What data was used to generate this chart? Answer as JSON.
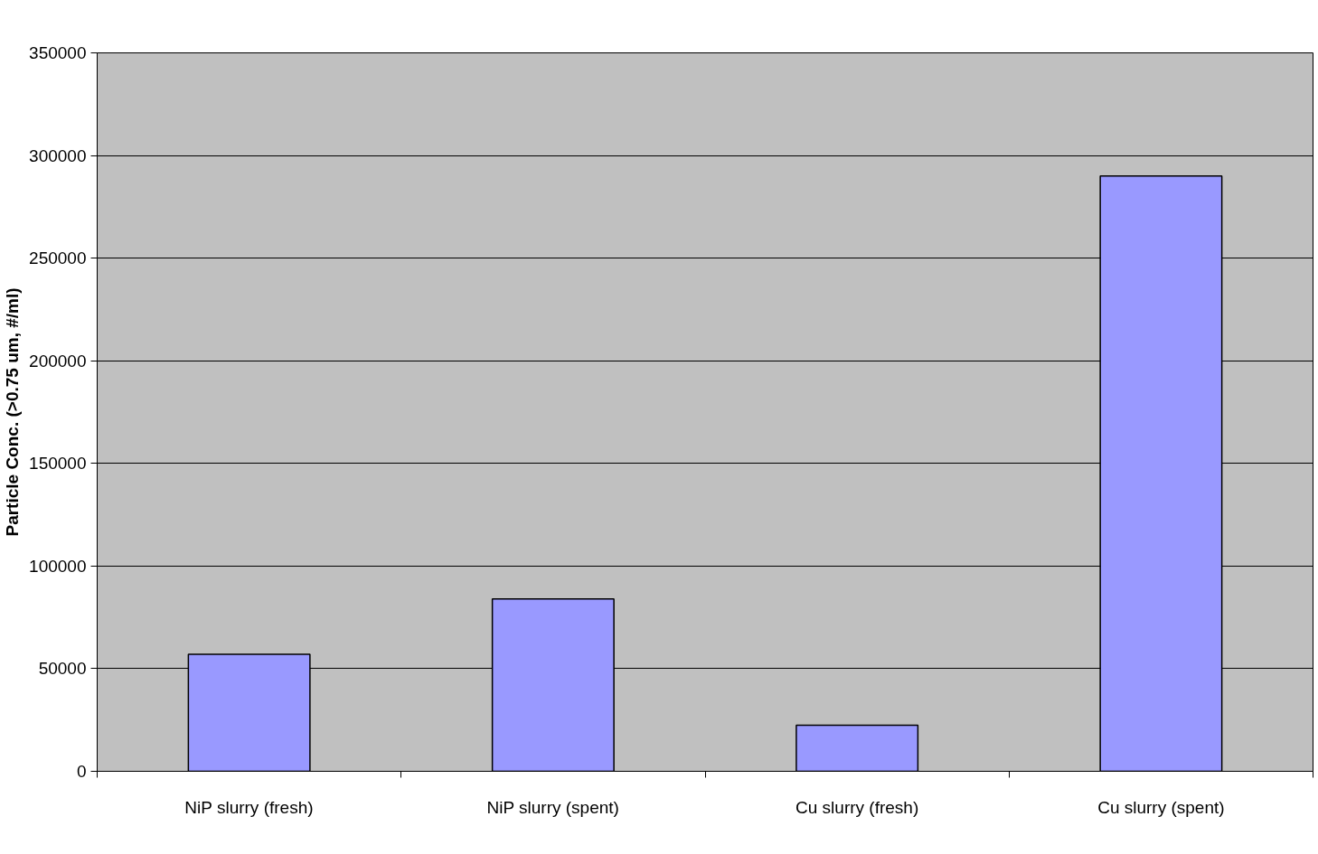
{
  "chart_data": {
    "type": "bar",
    "ylabel": "Particle Conc. (>0.75 um, #/ml)",
    "categories": [
      "NiP slurry (fresh)",
      "NiP slurry (spent)",
      "Cu slurry (fresh)",
      "Cu slurry (spent)"
    ],
    "values": [
      57000,
      84000,
      22500,
      290000
    ],
    "color": "#9999ff",
    "ylim": [
      0,
      350000
    ],
    "yticks": [
      0,
      50000,
      100000,
      150000,
      200000,
      250000,
      300000,
      350000
    ],
    "grid": "y"
  }
}
